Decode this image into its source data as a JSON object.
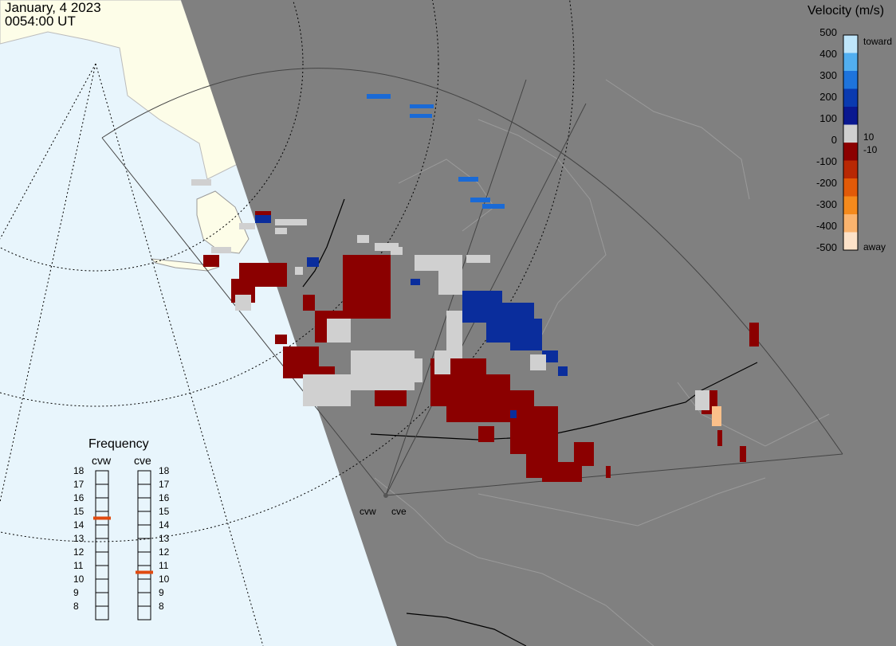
{
  "header": {
    "date": "January, 4 2023",
    "time": "0054:00 UT"
  },
  "colorbar": {
    "title": "Velocity (m/s)",
    "ticks": [
      "500",
      "400",
      "300",
      "200",
      "100",
      "0",
      "-100",
      "-200",
      "-300",
      "-400",
      "-500"
    ],
    "toward_label": "toward",
    "away_label": "away",
    "inner_pos_label": "10",
    "inner_neg_label": "-10",
    "colors": [
      "#fde2c8",
      "#fbb46e",
      "#f58a1c",
      "#e25a08",
      "#b82804",
      "#8b0000",
      "#d0d0d0",
      "#0a1890",
      "#0a3ab0",
      "#1e74dc",
      "#52aff0",
      "#bfe6fb"
    ]
  },
  "frequency": {
    "title": "Frequency",
    "radars": [
      {
        "name": "cvw",
        "selected_mhz": 15
      },
      {
        "name": "cve",
        "selected_mhz": 11
      }
    ],
    "scale": [
      "18",
      "17",
      "16",
      "15",
      "14",
      "13",
      "12",
      "11",
      "10",
      "9",
      "8"
    ]
  },
  "sites": [
    {
      "label": "cvw"
    },
    {
      "label": "cve"
    }
  ],
  "map_legend_colors": {
    "ocean": "#e8f5fc",
    "land_day": "#fdfde8",
    "night": "#808080",
    "negative": "#8b0000",
    "positive": "#0a2d9c",
    "ground_scatter": "#d0d0d0"
  }
}
